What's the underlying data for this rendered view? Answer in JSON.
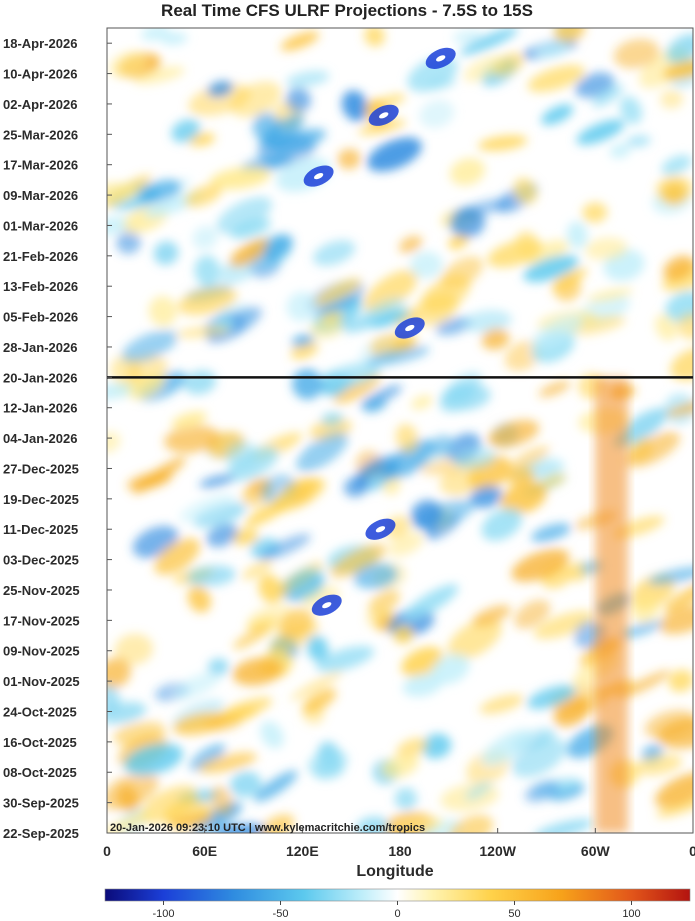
{
  "chart_data": {
    "type": "heatmap",
    "title": "Real Time CFS ULRF Projections - 7.5S to 15S",
    "xlabel": "Longitude",
    "ylabel": "",
    "x_ticks": [
      "0",
      "60E",
      "120E",
      "180",
      "120W",
      "60W",
      "0"
    ],
    "xlim": [
      0,
      360
    ],
    "y_ticks": [
      "18-Apr-2026",
      "10-Apr-2026",
      "02-Apr-2026",
      "25-Mar-2026",
      "17-Mar-2026",
      "09-Mar-2026",
      "01-Mar-2026",
      "21-Feb-2026",
      "13-Feb-2026",
      "05-Feb-2026",
      "28-Jan-2026",
      "20-Jan-2026",
      "12-Jan-2026",
      "04-Jan-2026",
      "27-Dec-2025",
      "19-Dec-2025",
      "11-Dec-2025",
      "03-Dec-2025",
      "25-Nov-2025",
      "17-Nov-2025",
      "09-Nov-2025",
      "01-Nov-2025",
      "24-Oct-2025",
      "16-Oct-2025",
      "08-Oct-2025",
      "30-Sep-2025",
      "22-Sep-2025"
    ],
    "ylim": [
      "22-Sep-2025",
      "22-Apr-2026"
    ],
    "current_date": "20-Jan-2026",
    "colorbar": {
      "ticks": [
        "-100",
        "-50",
        "0",
        "50",
        "100"
      ],
      "range": [
        -125,
        125
      ],
      "colors": [
        "#0b0b7a",
        "#1b3fd8",
        "#2f8ce0",
        "#5cc9ee",
        "#bfeefa",
        "#ffffff",
        "#fff3b0",
        "#ffd24a",
        "#f7a21a",
        "#e2561a",
        "#b3130f"
      ]
    },
    "features": [
      {
        "label": "persistent positive anomaly band",
        "lon_range": [
          300,
          320
        ],
        "dates": [
          "22-Sep-2025",
          "20-Jan-2026"
        ],
        "sign": "positive"
      },
      {
        "label": "negative anomaly",
        "lon": 135,
        "date": "21-Nov-2025",
        "sign": "negative"
      },
      {
        "label": "negative anomaly",
        "lon": 168,
        "date": "11-Dec-2025",
        "sign": "negative"
      },
      {
        "label": "negative anomaly",
        "lon": 186,
        "date": "02-Feb-2026",
        "sign": "negative"
      },
      {
        "label": "negative anomaly",
        "lon": 130,
        "date": "14-Mar-2026",
        "sign": "negative"
      },
      {
        "label": "negative anomaly",
        "lon": 170,
        "date": "30-Mar-2026",
        "sign": "negative"
      },
      {
        "label": "negative anomaly",
        "lon": 205,
        "date": "14-Apr-2026",
        "sign": "negative"
      }
    ]
  },
  "footer": {
    "stamp": "20-Jan-2026 09:23:10 UTC | www.kylemacritchie.com/tropics"
  }
}
